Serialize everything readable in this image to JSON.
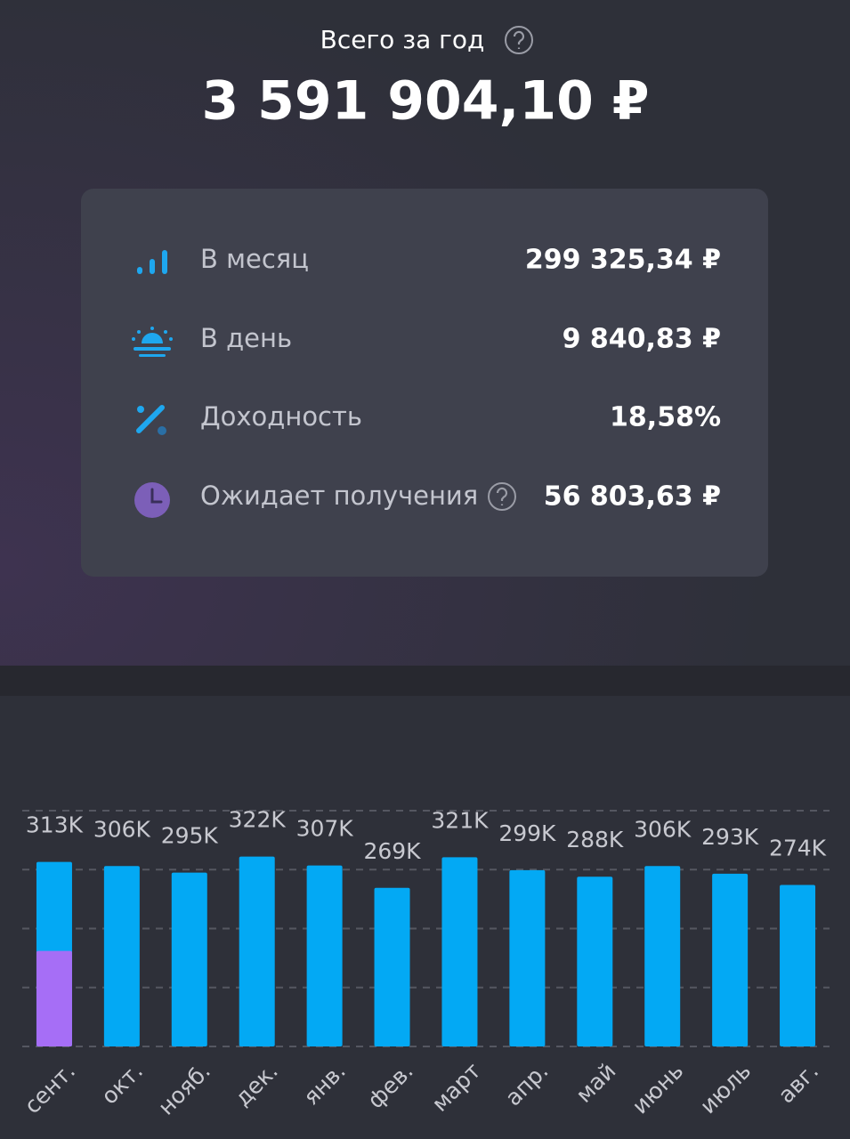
{
  "header": {
    "title": "Всего за год",
    "total": "3 591 904,10 ₽"
  },
  "stats": [
    {
      "label": "В месяц",
      "value": "299 325,34 ₽"
    },
    {
      "label": "В день",
      "value": "9 840,83 ₽"
    },
    {
      "label": "Доходность",
      "value": "18,58%"
    },
    {
      "label": "Ожидает получения",
      "value": "56 803,63 ₽"
    }
  ],
  "chart_data": {
    "type": "bar",
    "categories": [
      "сент.",
      "окт.",
      "нояб.",
      "дек.",
      "янв.",
      "фев.",
      "март",
      "апр.",
      "май",
      "июнь",
      "июль",
      "авг."
    ],
    "series": [
      {
        "color": "#03a9f4",
        "values": [
          313,
          306,
          295,
          322,
          307,
          269,
          321,
          299,
          288,
          306,
          293,
          274
        ],
        "value_labels": [
          "313K",
          "306K",
          "295K",
          "322K",
          "307K",
          "269K",
          "321K",
          "299K",
          "288K",
          "306K",
          "293K",
          "274K"
        ]
      },
      {
        "color": "#a66ef6",
        "values": [
          162,
          null,
          null,
          null,
          null,
          null,
          null,
          null,
          null,
          null,
          null,
          null
        ]
      }
    ],
    "ylim": [
      0,
      400
    ],
    "yticks": [
      0,
      100,
      200,
      300,
      400
    ],
    "grid": true
  }
}
